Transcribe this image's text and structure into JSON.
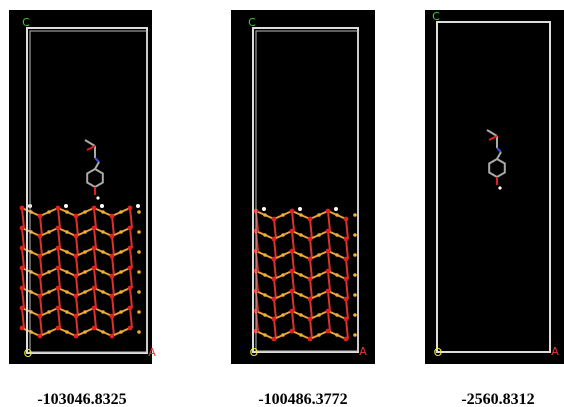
{
  "panels": [
    {
      "axis_labels": {
        "c": "C",
        "o": "O",
        "a": "A"
      },
      "energy": "-103046.8325"
    },
    {
      "axis_labels": {
        "c": "C",
        "o": "O",
        "a": "A"
      },
      "energy": "-100486.3772"
    },
    {
      "axis_labels": {
        "c": "C",
        "o": "O",
        "a": "A"
      },
      "energy": "-2560.8312"
    }
  ]
}
